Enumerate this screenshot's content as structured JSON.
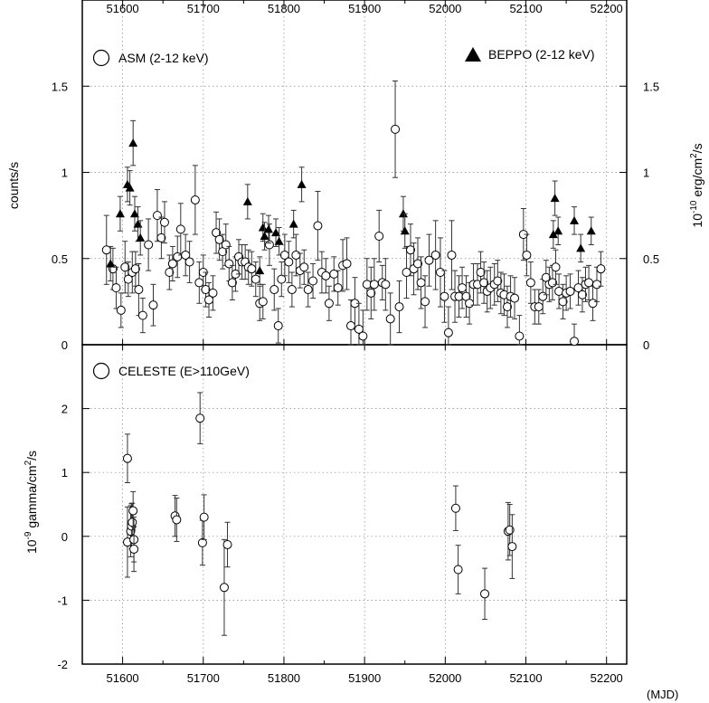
{
  "chart_data": [
    {
      "type": "scatter",
      "panel": "top",
      "xlabel": "(MJD)",
      "ylabel": "counts/s",
      "ylabel_right": "10^-10 erg/cm^2/s",
      "xlim": [
        51550,
        52225
      ],
      "ylim": [
        0,
        2
      ],
      "x_ticks": [
        51600,
        51700,
        51800,
        51900,
        52000,
        52100,
        52200
      ],
      "y_ticks": [
        0,
        0.5,
        1,
        1.5
      ],
      "y_tick_labels": [
        "0",
        "0.5",
        "1",
        "1.5"
      ],
      "grid": true,
      "legend_position": "top",
      "series": [
        {
          "name": "ASM (2-12 keV)",
          "marker": "open-circle",
          "points": [
            [
              51580,
              0.55,
              0.2
            ],
            [
              51588,
              0.44,
              0.12
            ],
            [
              51592,
              0.33,
              0.12
            ],
            [
              51598,
              0.2,
              0.1
            ],
            [
              51603,
              0.45,
              0.15
            ],
            [
              51607,
              0.38,
              0.1
            ],
            [
              51612,
              0.42,
              0.12
            ],
            [
              51616,
              0.44,
              0.1
            ],
            [
              51620,
              0.32,
              0.15
            ],
            [
              51625,
              0.17,
              0.1
            ],
            [
              51632,
              0.58,
              0.15
            ],
            [
              51638,
              0.23,
              0.12
            ],
            [
              51643,
              0.75,
              0.15
            ],
            [
              51648,
              0.62,
              0.12
            ],
            [
              51652,
              0.71,
              0.12
            ],
            [
              51658,
              0.42,
              0.1
            ],
            [
              51662,
              0.47,
              0.1
            ],
            [
              51668,
              0.51,
              0.12
            ],
            [
              51672,
              0.67,
              0.15
            ],
            [
              51678,
              0.52,
              0.12
            ],
            [
              51683,
              0.48,
              0.12
            ],
            [
              51690,
              0.84,
              0.2
            ],
            [
              51695,
              0.36,
              0.12
            ],
            [
              51700,
              0.42,
              0.1
            ],
            [
              51703,
              0.32,
              0.1
            ],
            [
              51707,
              0.26,
              0.1
            ],
            [
              51712,
              0.3,
              0.1
            ],
            [
              51716,
              0.65,
              0.12
            ],
            [
              51720,
              0.61,
              0.12
            ],
            [
              51724,
              0.54,
              0.1
            ],
            [
              51728,
              0.58,
              0.12
            ],
            [
              51732,
              0.47,
              0.1
            ],
            [
              51736,
              0.36,
              0.1
            ],
            [
              51740,
              0.41,
              0.1
            ],
            [
              51744,
              0.51,
              0.1
            ],
            [
              51748,
              0.48,
              0.1
            ],
            [
              51752,
              0.48,
              0.1
            ],
            [
              51756,
              0.45,
              0.1
            ],
            [
              51760,
              0.44,
              0.1
            ],
            [
              51765,
              0.38,
              0.1
            ],
            [
              51770,
              0.24,
              0.1
            ],
            [
              51774,
              0.25,
              0.1
            ],
            [
              51782,
              0.58,
              0.12
            ],
            [
              51788,
              0.32,
              0.12
            ],
            [
              51793,
              0.11,
              0.1
            ],
            [
              51797,
              0.38,
              0.1
            ],
            [
              51801,
              0.52,
              0.12
            ],
            [
              51806,
              0.48,
              0.12
            ],
            [
              51810,
              0.32,
              0.1
            ],
            [
              51815,
              0.52,
              0.12
            ],
            [
              51820,
              0.43,
              0.1
            ],
            [
              51825,
              0.45,
              0.1
            ],
            [
              51830,
              0.32,
              0.1
            ],
            [
              51836,
              0.37,
              0.1
            ],
            [
              51842,
              0.69,
              0.2
            ],
            [
              51847,
              0.42,
              0.12
            ],
            [
              51852,
              0.4,
              0.1
            ],
            [
              51856,
              0.24,
              0.1
            ],
            [
              51862,
              0.41,
              0.1
            ],
            [
              51867,
              0.33,
              0.1
            ],
            [
              51873,
              0.46,
              0.15
            ],
            [
              51878,
              0.47,
              0.15
            ],
            [
              51883,
              0.11,
              0.15
            ],
            [
              51888,
              0.24,
              0.15
            ],
            [
              51893,
              0.09,
              0.15
            ],
            [
              51898,
              0.05,
              0.15
            ],
            [
              51903,
              0.35,
              0.15
            ],
            [
              51908,
              0.3,
              0.15
            ],
            [
              51912,
              0.35,
              0.15
            ],
            [
              51918,
              0.63,
              0.15
            ],
            [
              51922,
              0.36,
              0.1
            ],
            [
              51926,
              0.35,
              0.15
            ],
            [
              51932,
              0.15,
              0.15
            ],
            [
              51938,
              1.25,
              0.28
            ],
            [
              51943,
              0.22,
              0.15
            ],
            [
              51952,
              0.42,
              0.15
            ],
            [
              51957,
              0.55,
              0.15
            ],
            [
              51961,
              0.44,
              0.15
            ],
            [
              51966,
              0.47,
              0.15
            ],
            [
              51970,
              0.36,
              0.15
            ],
            [
              51975,
              0.25,
              0.15
            ],
            [
              51980,
              0.49,
              0.15
            ],
            [
              51988,
              0.52,
              0.2
            ],
            [
              51994,
              0.42,
              0.2
            ],
            [
              51999,
              0.28,
              0.15
            ],
            [
              52004,
              0.07,
              0.15
            ],
            [
              52008,
              0.52,
              0.2
            ],
            [
              52012,
              0.28,
              0.15
            ],
            [
              52017,
              0.28,
              0.12
            ],
            [
              52021,
              0.33,
              0.12
            ],
            [
              52026,
              0.28,
              0.12
            ],
            [
              52030,
              0.24,
              0.12
            ],
            [
              52035,
              0.35,
              0.12
            ],
            [
              52040,
              0.35,
              0.12
            ],
            [
              52044,
              0.42,
              0.12
            ],
            [
              52048,
              0.36,
              0.12
            ],
            [
              52052,
              0.31,
              0.12
            ],
            [
              52056,
              0.33,
              0.12
            ],
            [
              52061,
              0.35,
              0.12
            ],
            [
              52065,
              0.37,
              0.12
            ],
            [
              52069,
              0.3,
              0.12
            ],
            [
              52073,
              0.29,
              0.12
            ],
            [
              52077,
              0.22,
              0.12
            ],
            [
              52081,
              0.28,
              0.12
            ],
            [
              52086,
              0.27,
              0.12
            ],
            [
              52092,
              0.05,
              0.12
            ],
            [
              52097,
              0.64,
              0.15
            ],
            [
              52101,
              0.52,
              0.12
            ],
            [
              52106,
              0.36,
              0.12
            ],
            [
              52111,
              0.22,
              0.1
            ],
            [
              52116,
              0.22,
              0.1
            ],
            [
              52121,
              0.28,
              0.1
            ],
            [
              52125,
              0.39,
              0.1
            ],
            [
              52129,
              0.35,
              0.1
            ],
            [
              52133,
              0.36,
              0.1
            ],
            [
              52137,
              0.45,
              0.1
            ],
            [
              52141,
              0.31,
              0.1
            ],
            [
              52146,
              0.25,
              0.1
            ],
            [
              52150,
              0.3,
              0.1
            ],
            [
              52155,
              0.31,
              0.1
            ],
            [
              52160,
              0.02,
              0.1
            ],
            [
              52165,
              0.33,
              0.1
            ],
            [
              52170,
              0.29,
              0.1
            ],
            [
              52174,
              0.35,
              0.1
            ],
            [
              52178,
              0.36,
              0.1
            ],
            [
              52183,
              0.24,
              0.1
            ],
            [
              52188,
              0.35,
              0.1
            ],
            [
              52193,
              0.44,
              0.1
            ]
          ]
        },
        {
          "name": "BEPPO (2-12 keV)",
          "marker": "filled-triangle",
          "points": [
            [
              51585,
              0.47,
              0.1
            ],
            [
              51597,
              0.76,
              0.1
            ],
            [
              51606,
              0.93,
              0.1
            ],
            [
              51609,
              0.91,
              0.1
            ],
            [
              51613,
              1.17,
              0.13
            ],
            [
              51615,
              0.76,
              0.1
            ],
            [
              51619,
              0.7,
              0.1
            ],
            [
              51622,
              0.62,
              0.1
            ],
            [
              51755,
              0.83,
              0.1
            ],
            [
              51770,
              0.43,
              0.08
            ],
            [
              51774,
              0.68,
              0.08
            ],
            [
              51776,
              0.63,
              0.08
            ],
            [
              51781,
              0.67,
              0.08
            ],
            [
              51790,
              0.65,
              0.08
            ],
            [
              51794,
              0.6,
              0.08
            ],
            [
              51812,
              0.7,
              0.08
            ],
            [
              51822,
              0.93,
              0.1
            ],
            [
              51948,
              0.76,
              0.1
            ],
            [
              51950,
              0.66,
              0.1
            ],
            [
              52134,
              0.64,
              0.08
            ],
            [
              52136,
              0.85,
              0.1
            ],
            [
              52140,
              0.66,
              0.08
            ],
            [
              52160,
              0.72,
              0.08
            ],
            [
              52168,
              0.56,
              0.08
            ],
            [
              52181,
              0.66,
              0.08
            ]
          ]
        }
      ]
    },
    {
      "type": "scatter",
      "panel": "bottom",
      "xlabel": "(MJD)",
      "ylabel": "10^-9 gamma/cm^2/s",
      "xlim": [
        51550,
        52225
      ],
      "ylim": [
        -2,
        3
      ],
      "x_ticks": [
        51600,
        51700,
        51800,
        51900,
        52000,
        52100,
        52200
      ],
      "y_ticks": [
        -2,
        -1,
        0,
        1,
        2
      ],
      "grid": true,
      "legend_position": "top-left",
      "series": [
        {
          "name": "CELESTE (E>110GeV)",
          "marker": "open-circle",
          "points": [
            [
              51606,
              1.22,
              0.38
            ],
            [
              51606,
              -0.09,
              0.55
            ],
            [
              51610,
              0.08,
              0.4
            ],
            [
              51611,
              0.16,
              0.35
            ],
            [
              51612,
              0.22,
              0.3
            ],
            [
              51613,
              0.4,
              0.3
            ],
            [
              51614,
              -0.05,
              0.35
            ],
            [
              51614,
              -0.2,
              0.35
            ],
            [
              51665,
              0.32,
              0.32
            ],
            [
              51667,
              0.26,
              0.34
            ],
            [
              51696,
              1.85,
              0.4
            ],
            [
              51699,
              -0.1,
              0.35
            ],
            [
              51701,
              0.3,
              0.35
            ],
            [
              51726,
              -0.8,
              0.75
            ],
            [
              51730,
              -0.13,
              0.35
            ],
            [
              52013,
              0.44,
              0.35
            ],
            [
              52016,
              -0.52,
              0.38
            ],
            [
              52049,
              -0.9,
              0.4
            ],
            [
              52078,
              0.08,
              0.45
            ],
            [
              52080,
              0.1,
              0.4
            ],
            [
              52083,
              -0.16,
              0.5
            ]
          ]
        }
      ]
    }
  ],
  "tick_labels_x": [
    "51600",
    "51700",
    "51800",
    "51900",
    "52000",
    "52100",
    "52200"
  ],
  "top_right_ticks": [
    "0",
    "0.5",
    "1",
    "1.5"
  ],
  "axis_text": {
    "ylabel_top": "counts/s",
    "ylabel_right_base": "10",
    "ylabel_right_exp": "-10",
    "ylabel_right_mid": " erg/cm",
    "ylabel_right_exp2": "2",
    "ylabel_right_end": "/s",
    "ylabel_bottom_base": "10",
    "ylabel_bottom_exp": "-9",
    "ylabel_bottom_mid": " gamma/cm",
    "ylabel_bottom_exp2": "2",
    "ylabel_bottom_end": "/s",
    "xunit": "(MJD)"
  },
  "legend": {
    "asm": "ASM (2-12 keV)",
    "beppo": "BEPPO (2-12 keV)",
    "celeste": "CELESTE (E>110GeV)"
  }
}
